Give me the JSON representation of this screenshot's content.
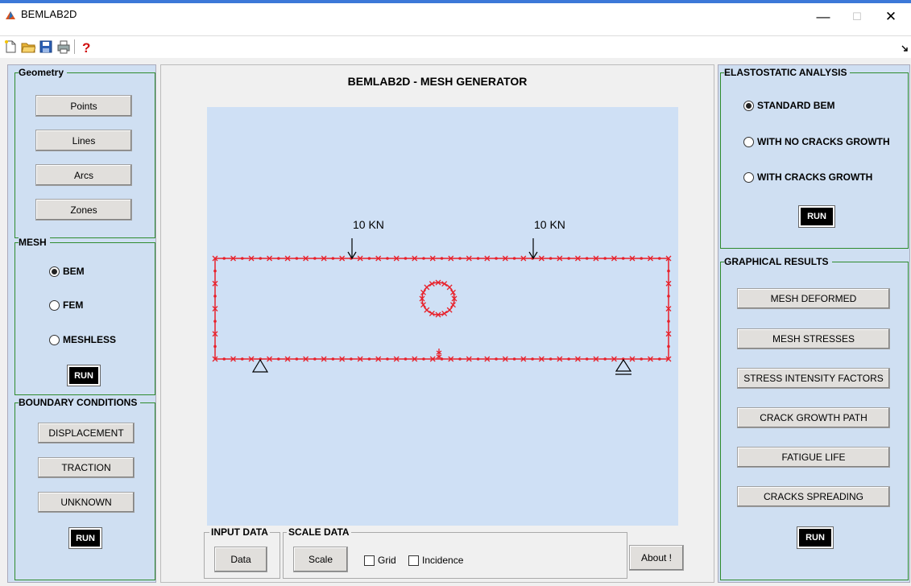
{
  "window": {
    "title": "BEMLAB2D",
    "minimize": "—",
    "maximize": "☐",
    "close": "✕"
  },
  "geometry": {
    "label": "Geometry",
    "points": "Points",
    "lines": "Lines",
    "arcs": "Arcs",
    "zones": "Zones"
  },
  "mesh": {
    "label": "MESH",
    "bem": "BEM",
    "fem": "FEM",
    "meshless": "MESHLESS",
    "run": "RUN"
  },
  "boundary": {
    "label": "BOUNDARY CONDITIONS",
    "displacement": "DISPLACEMENT",
    "traction": "TRACTION",
    "unknown": "UNKNOWN",
    "run": "RUN"
  },
  "main": {
    "title": "BEMLAB2D - MESH GENERATOR",
    "load1": "10 KN",
    "load2": "10 KN"
  },
  "input_data": {
    "label": "INPUT DATA",
    "button": "Data"
  },
  "scale_data": {
    "label": "SCALE DATA",
    "button": "Scale",
    "grid": "Grid",
    "incidence": "Incidence"
  },
  "about": "About !",
  "elasto": {
    "label": "ELASTOSTATIC ANALYSIS",
    "standard": "STANDARD BEM",
    "no_growth": "WITH NO CRACKS GROWTH",
    "growth": "WITH CRACKS GROWTH",
    "run": "RUN"
  },
  "graphical": {
    "label": "GRAPHICAL RESULTS",
    "b1": "MESH DEFORMED",
    "b2": "MESH STRESSES",
    "b3": "STRESS INTENSITY FACTORS",
    "b4": "CRACK GROWTH PATH",
    "b5": "FATIGUE LIFE",
    "b6": "CRACKS SPREADING",
    "run": "RUN"
  },
  "colors": {
    "mesh": "#e8202a",
    "panel": "#cfdff2",
    "plot": "#cfe0f5",
    "group_border": "#2e8b2e"
  }
}
